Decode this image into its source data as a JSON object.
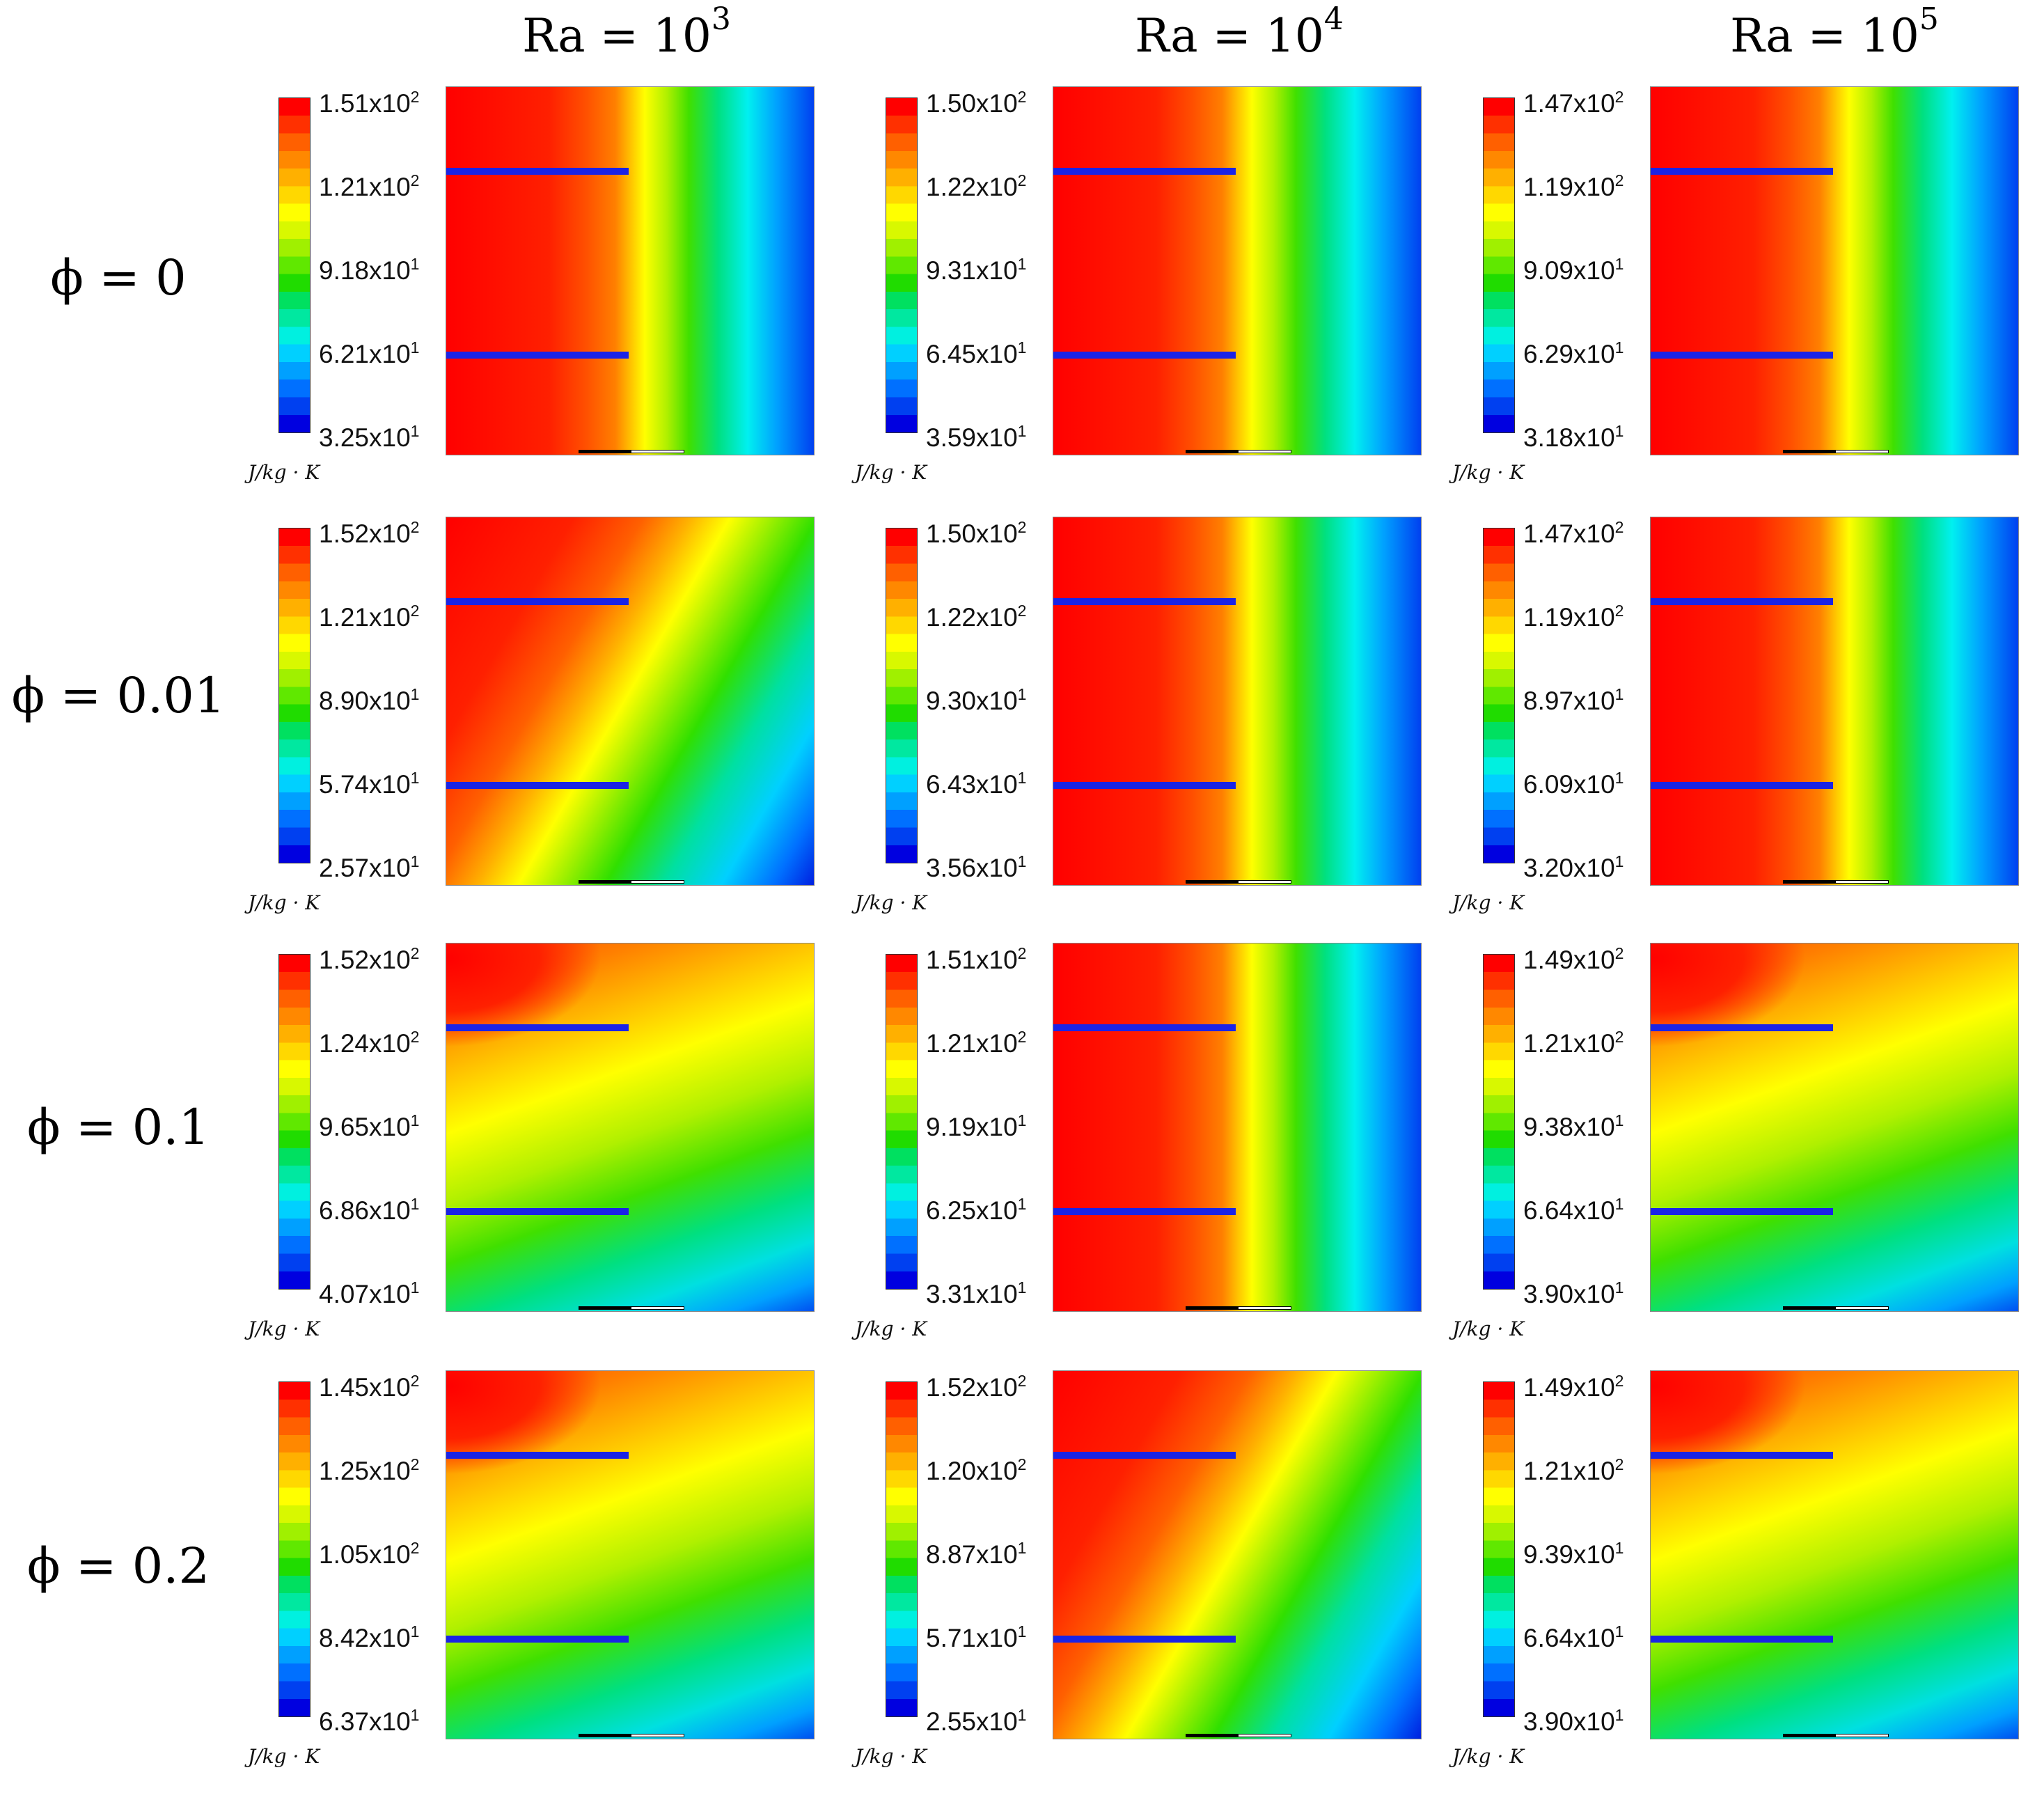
{
  "figure": {
    "columns": [
      {
        "prefix": "Ra = 10",
        "exp": "3"
      },
      {
        "prefix": "Ra = 10",
        "exp": "4"
      },
      {
        "prefix": "Ra = 10",
        "exp": "5"
      }
    ],
    "rows": [
      {
        "label": "ϕ = 0"
      },
      {
        "label": "ϕ = 0.01"
      },
      {
        "label": "ϕ = 0.1"
      },
      {
        "label": "ϕ = 0.2"
      }
    ],
    "unit": "J/kg · K",
    "panels": [
      {
        "ticks": [
          {
            "m": "1.51x10",
            "e": "2"
          },
          {
            "m": "1.21x10",
            "e": "2"
          },
          {
            "m": "9.18x10",
            "e": "1"
          },
          {
            "m": "6.21x10",
            "e": "1"
          },
          {
            "m": "3.25x10",
            "e": "1"
          }
        ],
        "pattern": "vertical"
      },
      {
        "ticks": [
          {
            "m": "1.50x10",
            "e": "2"
          },
          {
            "m": "1.22x10",
            "e": "2"
          },
          {
            "m": "9.31x10",
            "e": "1"
          },
          {
            "m": "6.45x10",
            "e": "1"
          },
          {
            "m": "3.59x10",
            "e": "1"
          }
        ],
        "pattern": "vertical"
      },
      {
        "ticks": [
          {
            "m": "1.47x10",
            "e": "2"
          },
          {
            "m": "1.19x10",
            "e": "2"
          },
          {
            "m": "9.09x10",
            "e": "1"
          },
          {
            "m": "6.29x10",
            "e": "1"
          },
          {
            "m": "3.18x10",
            "e": "1"
          }
        ],
        "pattern": "vertical"
      },
      {
        "ticks": [
          {
            "m": "1.52x10",
            "e": "2"
          },
          {
            "m": "1.21x10",
            "e": "2"
          },
          {
            "m": "8.90x10",
            "e": "1"
          },
          {
            "m": "5.74x10",
            "e": "1"
          },
          {
            "m": "2.57x10",
            "e": "1"
          }
        ],
        "pattern": "diagonal"
      },
      {
        "ticks": [
          {
            "m": "1.50x10",
            "e": "2"
          },
          {
            "m": "1.22x10",
            "e": "2"
          },
          {
            "m": "9.30x10",
            "e": "1"
          },
          {
            "m": "6.43x10",
            "e": "1"
          },
          {
            "m": "3.56x10",
            "e": "1"
          }
        ],
        "pattern": "vertical"
      },
      {
        "ticks": [
          {
            "m": "1.47x10",
            "e": "2"
          },
          {
            "m": "1.19x10",
            "e": "2"
          },
          {
            "m": "8.97x10",
            "e": "1"
          },
          {
            "m": "6.09x10",
            "e": "1"
          },
          {
            "m": "3.20x10",
            "e": "1"
          }
        ],
        "pattern": "vertical"
      },
      {
        "ticks": [
          {
            "m": "1.52x10",
            "e": "2"
          },
          {
            "m": "1.24x10",
            "e": "2"
          },
          {
            "m": "9.65x10",
            "e": "1"
          },
          {
            "m": "6.86x10",
            "e": "1"
          },
          {
            "m": "4.07x10",
            "e": "1"
          }
        ],
        "pattern": "plume"
      },
      {
        "ticks": [
          {
            "m": "1.51x10",
            "e": "2"
          },
          {
            "m": "1.21x10",
            "e": "2"
          },
          {
            "m": "9.19x10",
            "e": "1"
          },
          {
            "m": "6.25x10",
            "e": "1"
          },
          {
            "m": "3.31x10",
            "e": "1"
          }
        ],
        "pattern": "vertical"
      },
      {
        "ticks": [
          {
            "m": "1.49x10",
            "e": "2"
          },
          {
            "m": "1.21x10",
            "e": "2"
          },
          {
            "m": "9.38x10",
            "e": "1"
          },
          {
            "m": "6.64x10",
            "e": "1"
          },
          {
            "m": "3.90x10",
            "e": "1"
          }
        ],
        "pattern": "plume"
      },
      {
        "ticks": [
          {
            "m": "1.45x10",
            "e": "2"
          },
          {
            "m": "1.25x10",
            "e": "2"
          },
          {
            "m": "1.05x10",
            "e": "2"
          },
          {
            "m": "8.42x10",
            "e": "1"
          },
          {
            "m": "6.37x10",
            "e": "1"
          }
        ],
        "pattern": "plume"
      },
      {
        "ticks": [
          {
            "m": "1.52x10",
            "e": "2"
          },
          {
            "m": "1.20x10",
            "e": "2"
          },
          {
            "m": "8.87x10",
            "e": "1"
          },
          {
            "m": "5.71x10",
            "e": "1"
          },
          {
            "m": "2.55x10",
            "e": "1"
          }
        ],
        "pattern": "diagonal"
      },
      {
        "ticks": [
          {
            "m": "1.49x10",
            "e": "2"
          },
          {
            "m": "1.21x10",
            "e": "2"
          },
          {
            "m": "9.39x10",
            "e": "1"
          },
          {
            "m": "6.64x10",
            "e": "1"
          },
          {
            "m": "3.90x10",
            "e": "1"
          }
        ],
        "pattern": "plume"
      }
    ]
  }
}
